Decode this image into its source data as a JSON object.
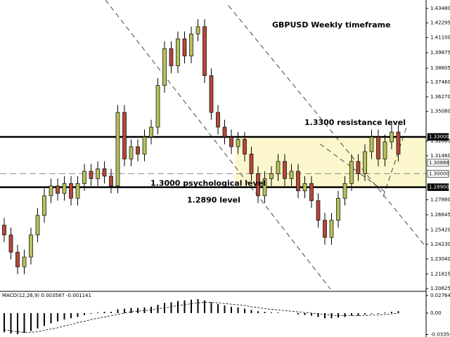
{
  "chart_data": {
    "type": "candlestick",
    "title": "GBPUSD Weekly timeframe",
    "annotations": [
      {
        "text": "1.3300 resistance level",
        "value": 1.33
      },
      {
        "text": "1.3000 psychological level",
        "value": 1.3
      },
      {
        "text": "1.2890 level",
        "value": 1.289
      }
    ],
    "colors": {
      "up": "#b6c25a",
      "down": "#b5473a",
      "zone": "#fbf6cc"
    },
    "ylim": [
      1.204,
      1.4417
    ],
    "yticks": [
      {
        "value": 1.4348,
        "label": "1.43480"
      },
      {
        "value": 1.42295,
        "label": "1.42295"
      },
      {
        "value": 1.411,
        "label": "1.41100"
      },
      {
        "value": 1.39875,
        "label": "1.39875"
      },
      {
        "value": 1.38605,
        "label": "1.38605"
      },
      {
        "value": 1.3746,
        "label": "1.37460"
      },
      {
        "value": 1.3627,
        "label": "1.36270"
      },
      {
        "value": 1.3508,
        "label": "1.35080"
      },
      {
        "value": 1.32665,
        "label": "1.32665"
      },
      {
        "value": 1.3146,
        "label": "1.31460"
      },
      {
        "value": 1.2788,
        "label": "1.27880"
      },
      {
        "value": 1.26645,
        "label": "1.26645"
      },
      {
        "value": 1.2542,
        "label": "1.25420"
      },
      {
        "value": 1.2423,
        "label": "1.24230"
      },
      {
        "value": 1.2304,
        "label": "1.23040"
      },
      {
        "value": 1.21815,
        "label": "1.21815"
      },
      {
        "value": 1.20625,
        "label": "1.20625"
      }
    ],
    "price_labels": [
      {
        "value": 1.33,
        "label": "1.33000"
      },
      {
        "value": 1.30888,
        "label": "1.30888"
      },
      {
        "value": 1.3,
        "label": "1.30000"
      },
      {
        "value": 1.289,
        "label": "1.28900"
      }
    ],
    "candles": [
      [
        1.258,
        1.264,
        1.244,
        1.25
      ],
      [
        1.25,
        1.256,
        1.23,
        1.236
      ],
      [
        1.236,
        1.242,
        1.218,
        1.224
      ],
      [
        1.224,
        1.238,
        1.218,
        1.232
      ],
      [
        1.232,
        1.256,
        1.226,
        1.25
      ],
      [
        1.25,
        1.272,
        1.244,
        1.266
      ],
      [
        1.266,
        1.288,
        1.26,
        1.282
      ],
      [
        1.282,
        1.296,
        1.276,
        1.29
      ],
      [
        1.29,
        1.296,
        1.278,
        1.284
      ],
      [
        1.284,
        1.298,
        1.278,
        1.292
      ],
      [
        1.292,
        1.298,
        1.274,
        1.28
      ],
      [
        1.28,
        1.298,
        1.274,
        1.292
      ],
      [
        1.292,
        1.308,
        1.286,
        1.302
      ],
      [
        1.302,
        1.308,
        1.29,
        1.296
      ],
      [
        1.296,
        1.31,
        1.29,
        1.304
      ],
      [
        1.304,
        1.31,
        1.292,
        1.298
      ],
      [
        1.298,
        1.304,
        1.284,
        1.29
      ],
      [
        1.29,
        1.356,
        1.284,
        1.35
      ],
      [
        1.35,
        1.356,
        1.306,
        1.312
      ],
      [
        1.312,
        1.328,
        1.306,
        1.322
      ],
      [
        1.322,
        1.328,
        1.31,
        1.316
      ],
      [
        1.316,
        1.336,
        1.31,
        1.33
      ],
      [
        1.33,
        1.344,
        1.324,
        1.338
      ],
      [
        1.338,
        1.378,
        1.332,
        1.372
      ],
      [
        1.372,
        1.408,
        1.366,
        1.402
      ],
      [
        1.402,
        1.408,
        1.382,
        1.388
      ],
      [
        1.388,
        1.416,
        1.382,
        1.41
      ],
      [
        1.41,
        1.416,
        1.39,
        1.396
      ],
      [
        1.396,
        1.42,
        1.39,
        1.414
      ],
      [
        1.414,
        1.426,
        1.408,
        1.42
      ],
      [
        1.42,
        1.426,
        1.374,
        1.38
      ],
      [
        1.38,
        1.386,
        1.344,
        1.35
      ],
      [
        1.35,
        1.356,
        1.332,
        1.338
      ],
      [
        1.338,
        1.344,
        1.324,
        1.33
      ],
      [
        1.33,
        1.336,
        1.316,
        1.322
      ],
      [
        1.322,
        1.334,
        1.316,
        1.328
      ],
      [
        1.328,
        1.334,
        1.31,
        1.316
      ],
      [
        1.316,
        1.322,
        1.294,
        1.3
      ],
      [
        1.3,
        1.306,
        1.276,
        1.282
      ],
      [
        1.282,
        1.302,
        1.276,
        1.296
      ],
      [
        1.296,
        1.306,
        1.29,
        1.3
      ],
      [
        1.3,
        1.316,
        1.294,
        1.31
      ],
      [
        1.31,
        1.316,
        1.29,
        1.296
      ],
      [
        1.296,
        1.308,
        1.29,
        1.302
      ],
      [
        1.302,
        1.308,
        1.28,
        1.286
      ],
      [
        1.286,
        1.298,
        1.28,
        1.292
      ],
      [
        1.292,
        1.298,
        1.272,
        1.278
      ],
      [
        1.278,
        1.284,
        1.256,
        1.262
      ],
      [
        1.262,
        1.268,
        1.242,
        1.248
      ],
      [
        1.248,
        1.268,
        1.242,
        1.262
      ],
      [
        1.262,
        1.286,
        1.256,
        1.28
      ],
      [
        1.28,
        1.298,
        1.274,
        1.292
      ],
      [
        1.292,
        1.316,
        1.286,
        1.31
      ],
      [
        1.31,
        1.316,
        1.294,
        1.3
      ],
      [
        1.3,
        1.324,
        1.294,
        1.318
      ],
      [
        1.318,
        1.336,
        1.312,
        1.33
      ],
      [
        1.33,
        1.336,
        1.306,
        1.312
      ],
      [
        1.312,
        1.332,
        1.306,
        1.326
      ],
      [
        1.326,
        1.34,
        1.32,
        1.334
      ],
      [
        1.334,
        1.34,
        1.31,
        1.316
      ]
    ],
    "macd": {
      "label": "MACD(12,26,9) 0.003587 -0.001141",
      "ylim": [
        -0.0374,
        0.033
      ],
      "yticks": [
        {
          "value": 0.02764,
          "label": "0.02764"
        },
        {
          "value": 0,
          "label": "0.00"
        },
        {
          "value": -0.03354,
          "label": "-0.03354"
        }
      ],
      "histogram": [
        -0.03,
        -0.032,
        -0.033,
        -0.031,
        -0.028,
        -0.024,
        -0.02,
        -0.016,
        -0.013,
        -0.01,
        -0.008,
        -0.006,
        -0.003,
        -0.001,
        0.001,
        0.002,
        0.002,
        0.006,
        0.007,
        0.008,
        0.008,
        0.009,
        0.01,
        0.013,
        0.016,
        0.017,
        0.019,
        0.02,
        0.021,
        0.022,
        0.02,
        0.017,
        0.014,
        0.012,
        0.01,
        0.009,
        0.007,
        0.005,
        0.003,
        0.002,
        0.001,
        0.001,
        0.0,
        0.0,
        -0.002,
        -0.003,
        -0.004,
        -0.006,
        -0.008,
        -0.008,
        -0.007,
        -0.006,
        -0.004,
        -0.004,
        -0.002,
        -0.001,
        -0.001,
        0.001,
        0.002,
        0.003
      ],
      "signal": [
        -0.026,
        -0.028,
        -0.029,
        -0.03,
        -0.03,
        -0.029,
        -0.027,
        -0.025,
        -0.023,
        -0.02,
        -0.018,
        -0.015,
        -0.013,
        -0.01,
        -0.008,
        -0.006,
        -0.004,
        -0.002,
        0.0,
        0.002,
        0.003,
        0.004,
        0.005,
        0.007,
        0.008,
        0.01,
        0.012,
        0.013,
        0.015,
        0.016,
        0.017,
        0.017,
        0.016,
        0.015,
        0.014,
        0.013,
        0.012,
        0.01,
        0.009,
        0.007,
        0.006,
        0.005,
        0.004,
        0.003,
        0.002,
        0.001,
        0.0,
        -0.001,
        -0.002,
        -0.003,
        -0.004,
        -0.004,
        -0.004,
        -0.004,
        -0.004,
        -0.003,
        -0.003,
        -0.002,
        -0.001,
        0.0
      ]
    }
  }
}
